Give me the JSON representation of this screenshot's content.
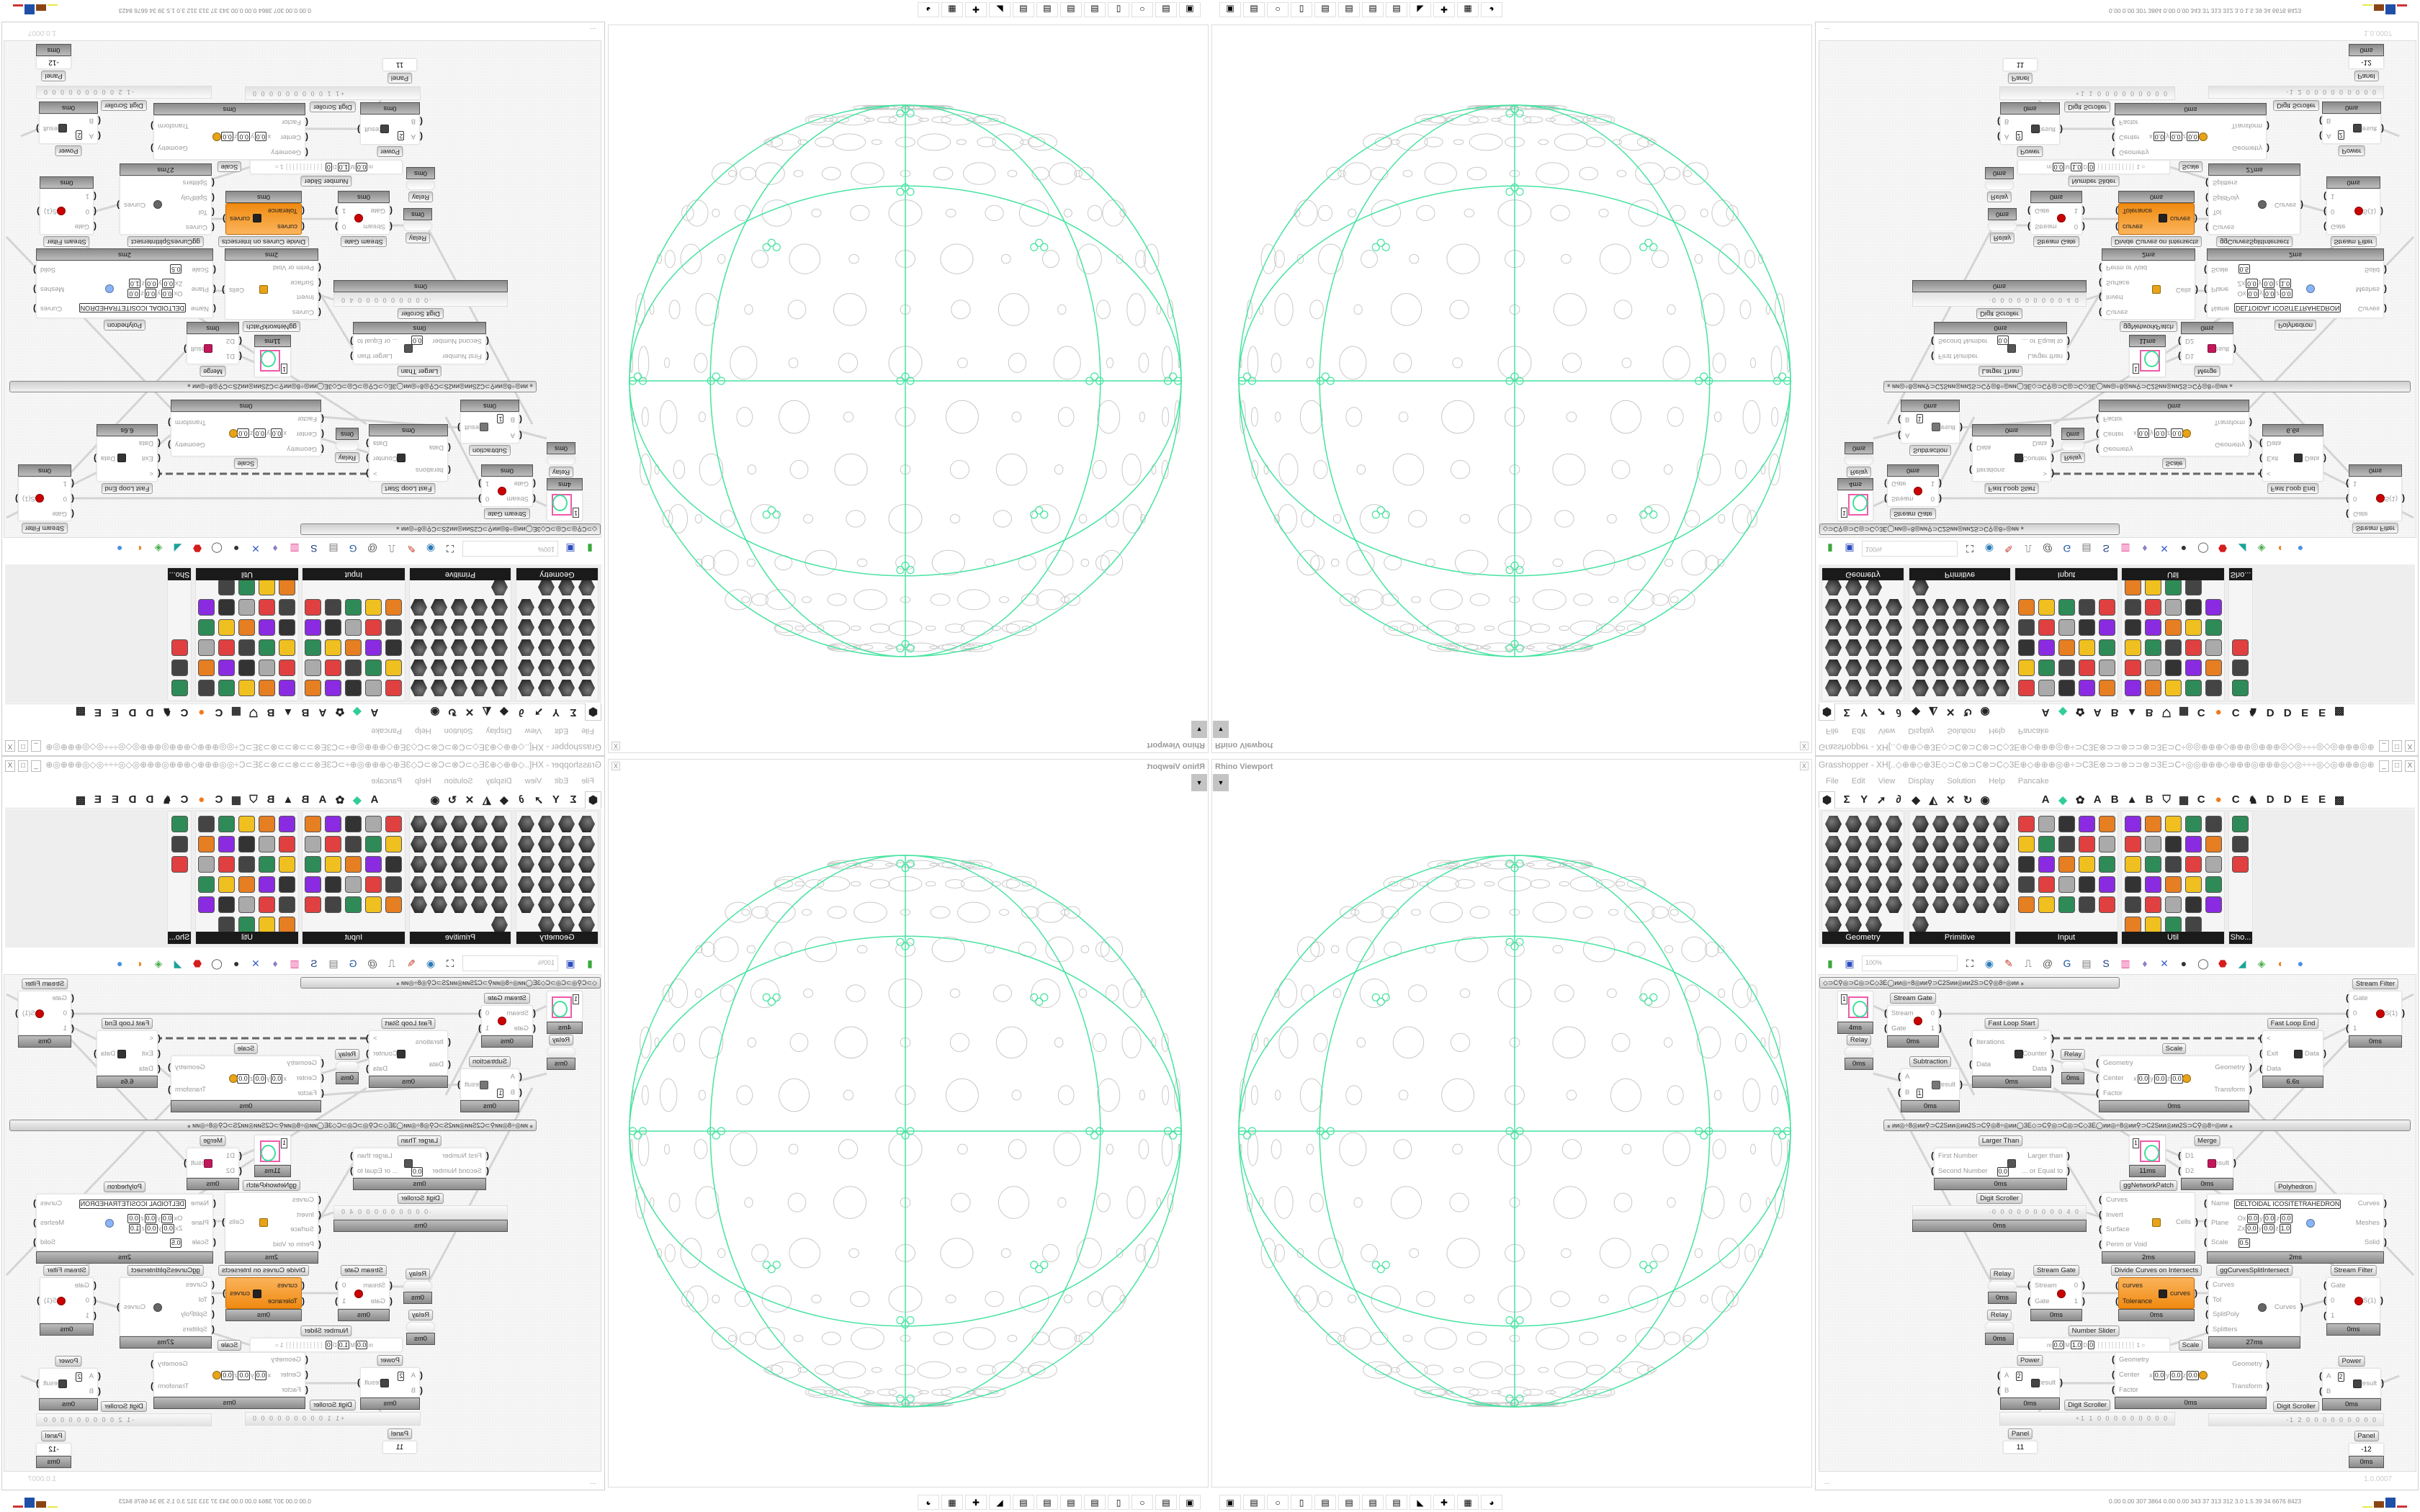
{
  "colors": {
    "accent_green": "#47e3a0",
    "component_orange": "#f7941d",
    "swatch_pink": "#ee5aa8"
  },
  "viewport": {
    "title": "Rhino Viewport",
    "close_label": "X",
    "dropdown_icon": "chevron-down-icon",
    "taskbar": [
      "battery-monitor-icon",
      "save-64-icon",
      "blank-app-icon",
      "folder-icon",
      "notepad-icon",
      "notepad-icon",
      "notepad-icon",
      "notepad-icon",
      "wolf-app-icon",
      "red-badge-app-icon",
      "calculator-icon",
      "firefox-icon"
    ]
  },
  "grasshopper": {
    "title": "Grasshopper - XH[..◇⊕⊕◇⊕3E◇⊃C⊗⊃C⊗⊃C◇3E⊕◇⊕⊕⊕◎⊕÷⊃C3E⊗⊃⊃⊗⊃⊃⊗⊃3E⊃C÷◎◎⊕⊕⊕◇⊕⊕⊕◎⊕⊕⊕◎◇◎÷÷÷◎◇◎⊕⊕⊕◎⊕⊕⊕◇⊕⊕⊕◎◎÷⊃C3E⊗⊃⊃⊗⊃...",
    "window_controls": [
      "_",
      "□",
      "X"
    ],
    "menu": [
      "File",
      "Edit",
      "View",
      "Display",
      "Solution",
      "Help",
      "Pancake"
    ],
    "tabs": [
      {
        "kind": "icon",
        "glyph": "⬢",
        "name": "params-tab-icon",
        "selected": true
      },
      {
        "kind": "icon",
        "glyph": "Σ",
        "name": "maths-tab-icon"
      },
      {
        "kind": "icon",
        "glyph": "Y",
        "name": "sets-tab-icon"
      },
      {
        "kind": "icon",
        "glyph": "➚",
        "name": "vector-tab-icon"
      },
      {
        "kind": "icon",
        "glyph": "∂",
        "name": "curve-tab-icon"
      },
      {
        "kind": "icon",
        "glyph": "◆",
        "name": "surface-tab-icon"
      },
      {
        "kind": "icon",
        "glyph": "◭",
        "name": "mesh-tab-icon"
      },
      {
        "kind": "icon",
        "glyph": "✕",
        "name": "intersect-tab-icon"
      },
      {
        "kind": "icon",
        "glyph": "↻",
        "name": "transform-tab-icon"
      },
      {
        "kind": "icon",
        "glyph": "◉",
        "name": "display-tab-icon"
      },
      {
        "kind": "text",
        "glyph": "A"
      },
      {
        "kind": "icon",
        "glyph": "◆",
        "name": "green-crystal-tab-icon"
      },
      {
        "kind": "icon",
        "glyph": "✿",
        "name": "puzzle-tab-icon"
      },
      {
        "kind": "text",
        "glyph": "A"
      },
      {
        "kind": "text",
        "glyph": "B"
      },
      {
        "kind": "icon",
        "glyph": "▲",
        "name": "mountains-tab-icon"
      },
      {
        "kind": "text",
        "glyph": "B"
      },
      {
        "kind": "icon",
        "glyph": "⛉",
        "name": "shield-tab-icon"
      },
      {
        "kind": "icon",
        "glyph": "▦",
        "name": "grid-tab-icon"
      },
      {
        "kind": "text",
        "glyph": "C"
      },
      {
        "kind": "icon",
        "glyph": "●",
        "name": "orange-circle-tab-icon"
      },
      {
        "kind": "text",
        "glyph": "C"
      },
      {
        "kind": "icon",
        "glyph": "♞",
        "name": "bird-tab-icon"
      },
      {
        "kind": "text",
        "glyph": "D"
      },
      {
        "kind": "text",
        "glyph": "D"
      },
      {
        "kind": "text",
        "glyph": "E"
      },
      {
        "kind": "text",
        "glyph": "E"
      },
      {
        "kind": "icon",
        "glyph": "▩",
        "name": "more-tabs-icon"
      }
    ],
    "panels": [
      {
        "label": "Geometry",
        "icons": [
          "vector-param-icon",
          "line-param-icon",
          "point-param-icon",
          "spiral-param-icon",
          "delete-param-icon",
          "plane-param-icon",
          "face-param-icon",
          "frame-param-icon",
          "arrow-param-icon",
          "diamond-param-icon",
          "text-tag-param-icon",
          "wave-param-icon",
          "circle-param-icon",
          "box-param-icon",
          "capsule-param-icon",
          "cluster-param-icon",
          "arc-param-icon",
          "cube-param-icon",
          "surface-param-icon",
          "gear-param-icon",
          "rings-param-icon",
          "mesh-sphere-param-icon",
          "magnet-param-icon"
        ]
      },
      {
        "label": "Primitive",
        "icons": [
          "boolean-icon",
          "path-icon",
          "matrix-icon",
          "curve-id-icon",
          "domain-icon",
          "field-icon",
          "vector-field-icon",
          "time-icon",
          "shade-icon",
          "color-icon",
          "pin-icon",
          "ucs-icon",
          "hexagon-icon",
          "material-icon",
          "integer-icon",
          "split-icon",
          "tree-icon",
          "transform-icon",
          "decimal-icon",
          "hash-icon",
          "c-text-icon",
          "file-path-icon",
          "a-text-icon",
          "id-icon",
          "sphere-icon",
          "data-icon"
        ]
      },
      {
        "label": "Input",
        "icons": [
          "import-icon",
          "black-box-icon",
          "prism-icon",
          "3dm-icon",
          "loop-icon",
          "graph-mapper-icon",
          "gradient-icon",
          "paint-icon",
          "xyz-icon",
          "toggle-icon",
          "control-knob-icon",
          "color-wheel-icon",
          "img-icon",
          "button-icon",
          "checker-icon",
          "curve-graph-icon",
          "pdb-icon",
          "stairs-icon",
          "calendar-icon",
          "gumball-icon",
          "shp-icon",
          "list-icon",
          "clock-icon",
          "color-bars-icon",
          "id-tag-icon"
        ]
      },
      {
        "label": "Util",
        "icons": [
          "cherry-icon",
          "magnet-icon",
          "arrow-right-icon",
          "cs-script-icon",
          "a-script-icon",
          "play-icon",
          "record-icon",
          "search-icon",
          "spiral-script-icon",
          "ball-icon",
          "axis-icon",
          "pencil-icon",
          "timer-icon",
          "seven-script-icon",
          "flask-icon",
          "tree-icon",
          "fuse-icon",
          "egg-icon",
          "key-script-icon",
          "function-icon",
          "circle-icon",
          "reset-icon",
          "premiere-icon",
          "decimal-script-icon",
          "palette-icon",
          "abc-icon",
          "next-arrow-icon",
          "gauge-script-icon",
          "cross-script-icon"
        ]
      },
      {
        "label": "Sho...",
        "icons": [
          "headset-icon",
          "vr-icon",
          "display-stand-icon"
        ]
      }
    ],
    "toolbar": {
      "zoom_value": "100%",
      "icons": [
        {
          "name": "new-document-icon",
          "glyph": "▮",
          "color": "#3aa83a"
        },
        {
          "name": "save-icon",
          "glyph": "▣",
          "color": "#2c4bbf"
        },
        {
          "name": "zoom-extents-icon",
          "glyph": "⛶",
          "color": "#111"
        },
        {
          "name": "preview-eye-icon",
          "glyph": "◉",
          "color": "#2a7ab8"
        },
        {
          "name": "sketch-icon",
          "glyph": "✎",
          "color": "#c0392b"
        },
        {
          "name": "solver-icon",
          "glyph": "⎍",
          "color": "#333"
        },
        {
          "name": "email-icon",
          "glyph": "@",
          "color": "#555"
        },
        {
          "name": "gha-icon",
          "glyph": "G",
          "color": "#1e56a0"
        },
        {
          "name": "canvas-image-icon",
          "glyph": "▤",
          "color": "#777"
        },
        {
          "name": "search-component-icon",
          "glyph": "S",
          "color": "#1d3b7a"
        },
        {
          "name": "package-icon",
          "glyph": "▥",
          "color": "#e84393"
        },
        {
          "name": "balloon-icon",
          "glyph": "♦",
          "color": "#8e7cc3"
        },
        {
          "name": "dna-icon",
          "glyph": "✕",
          "color": "#3a5fcd"
        },
        {
          "name": "bulb-icon",
          "glyph": "●",
          "color": "#333"
        },
        {
          "name": "ring-icon",
          "glyph": "◯",
          "color": "#555"
        },
        {
          "name": "red-gem-icon",
          "glyph": "⬣",
          "color": "#d51d1d"
        },
        {
          "name": "teal-shape-icon",
          "glyph": "◢",
          "color": "#1aa39a"
        },
        {
          "name": "green-spindle-icon",
          "glyph": "◈",
          "color": "#4caf50"
        },
        {
          "name": "split-sphere-icon",
          "glyph": "◐",
          "color": "#e67e22"
        },
        {
          "name": "blue-sphere-icon",
          "glyph": "●",
          "color": "#4a90e2"
        }
      ]
    },
    "groups": [
      "◇⊃C⚲◎⊃C◎⊃C◇3E◯ᴎᴎ◎÷8◎ᴎᴎ⚲⊃C2Sᴎᴎ◎ᴎᴎ2S⊃C⚲◎8÷◎ᴎᴎ     ⁎",
      "⁎        ᴎᴎ◎÷8◎ᴎᴎ⚲⊃C2Sᴎᴎ◎ᴎᴎ2S⊃C⚲◎8÷◎ᴎᴎ◯3E◇⊃C⚲◎⊃C◎⊃C◇3E◯ᴎᴎ◎÷8◎ᴎᴎ⚲⊃C2Sᴎᴎ◎ᴎᴎ2S⊃C⚲◎8÷◎ᴎᴎ        ⁎"
    ],
    "nodes": [
      {
        "type": "swatch",
        "value": "1",
        "footer": "4ms"
      },
      {
        "type": "relay",
        "label": "Relay",
        "footer": "0ms"
      },
      {
        "type": "component",
        "label": "Stream Gate",
        "inputs": [
          "Stream",
          "Gate"
        ],
        "outputs": [
          "0",
          "1"
        ],
        "icon": "stream-gate-icon",
        "footer": "0ms"
      },
      {
        "type": "component",
        "label": "Fast Loop Start",
        "inputs": [
          "Iterations",
          "Data"
        ],
        "outputs": [
          ">",
          "Counter",
          "Data"
        ],
        "icon": "loop-start-icon",
        "footer": "0ms"
      },
      {
        "type": "relay",
        "label": "Relay",
        "footer": "0ms"
      },
      {
        "type": "component",
        "label": "Scale",
        "inputs": [
          "Geometry",
          "Center",
          "Factor"
        ],
        "outputs": [
          "Geometry",
          "Transform"
        ],
        "fields": {
          "Center": [
            "x",
            "0.0",
            "y",
            "0.0",
            "z",
            "0.0"
          ]
        },
        "icon": "scale-icon",
        "footer": "0ms"
      },
      {
        "type": "component",
        "label": "Fast Loop End",
        "inputs": [
          "<",
          "Exit",
          "Data"
        ],
        "outputs": [
          "Data"
        ],
        "icon": "loop-end-icon",
        "footer": "6.6s"
      },
      {
        "type": "component",
        "label": "Stream Filter",
        "inputs": [
          "Gate",
          "0",
          "1"
        ],
        "outputs": [
          "S(1)"
        ],
        "icon": "stream-filter-icon",
        "footer": "0ms"
      },
      {
        "type": "component",
        "label": "Subtraction",
        "inputs": [
          "A",
          "B"
        ],
        "outputs": [
          "Result"
        ],
        "fields": {
          "B": [
            "1"
          ]
        },
        "icon": "minus-icon",
        "footer": "0ms"
      },
      {
        "type": "component",
        "label": "Larger Than",
        "inputs": [
          "First Number",
          "Second Number"
        ],
        "outputs": [
          "Larger than",
          "... or Equal to"
        ],
        "fields": {
          "Second Number": [
            "0.0"
          ]
        },
        "icon": "greater-than-icon",
        "footer": "0ms"
      },
      {
        "type": "swatch",
        "value": "1",
        "footer": "11ms"
      },
      {
        "type": "component",
        "label": "Merge",
        "inputs": [
          "D1",
          "D2"
        ],
        "outputs": [
          "Result"
        ],
        "icon": "merge-icon",
        "footer": "0ms"
      },
      {
        "type": "scroller",
        "label": "Digit Scroller",
        "value": "·0 0 0 0 0 0 0 0 0 4 0",
        "footer": "0ms"
      },
      {
        "type": "component",
        "label": "ggNetworkPatch",
        "inputs": [
          "Curves",
          "Invert",
          "Surface",
          "Perim or Void"
        ],
        "outputs": [
          "Cells"
        ],
        "icon": "network-patch-icon",
        "footer": "2ms"
      },
      {
        "type": "component",
        "label": "Polyhedron",
        "inputs": [
          "Name",
          "Plane",
          "Scale"
        ],
        "outputs": [
          "Curves",
          "Meshes",
          "Solid"
        ],
        "fields": {
          "Name": [
            "DELTOIDAL ICOSITETRAHEDRON"
          ],
          "Plane": [
            [
              "O",
              "x",
              "0.0",
              "y",
              "0.0",
              "z",
              "0.0"
            ],
            [
              "Z",
              "x",
              "0.0",
              "y",
              "0.0",
              "z",
              "1.0"
            ]
          ],
          "Scale": [
            "0.5"
          ]
        },
        "icon": "polyhedron-icon",
        "footer": "2ms"
      },
      {
        "type": "relay",
        "label": "Relay",
        "footer": "0ms"
      },
      {
        "type": "relay",
        "label": "Relay",
        "footer": "0ms"
      },
      {
        "type": "component",
        "label": "Stream Gate",
        "inputs": [
          "Stream",
          "Gate"
        ],
        "outputs": [
          "0",
          "1"
        ],
        "icon": "stream-gate-icon",
        "footer": "0ms"
      },
      {
        "type": "component",
        "label": "Divide Curves on Intersects",
        "inputs": [
          "curves",
          "Tolerance"
        ],
        "outputs": [
          "curves"
        ],
        "icon": "divide-curves-icon",
        "footer": "0ms",
        "highlight": true
      },
      {
        "type": "component",
        "label": "ggCurvesSplitIntersect",
        "inputs": [
          "Curves",
          "Tol",
          "SplitPoly",
          "Splitters"
        ],
        "outputs": [
          "Curves"
        ],
        "icon": "split-intersect-icon",
        "footer": "27ms"
      },
      {
        "type": "component",
        "label": "Stream Filter",
        "inputs": [
          "Gate",
          "0",
          "1"
        ],
        "outputs": [
          "S(1)"
        ],
        "icon": "stream-filter-icon",
        "footer": "0ms"
      },
      {
        "type": "slider",
        "label": "Number Slider",
        "min": "0.0",
        "max": "1.0",
        "decimals": "0",
        "value": "1"
      },
      {
        "type": "component",
        "label": "Power",
        "inputs": [
          "A",
          "B"
        ],
        "outputs": [
          "Result"
        ],
        "fields": {
          "A": [
            "2"
          ]
        },
        "icon": "power-icon",
        "footer": "0ms"
      },
      {
        "type": "component",
        "label": "Scale",
        "inputs": [
          "Geometry",
          "Center",
          "Factor"
        ],
        "outputs": [
          "Geometry",
          "Transform"
        ],
        "fields": {
          "Center": [
            "x",
            "0.0",
            "y",
            "0.0",
            "z",
            "0.0"
          ]
        },
        "icon": "scale-icon",
        "footer": "0ms"
      },
      {
        "type": "component",
        "label": "Power",
        "inputs": [
          "A",
          "B"
        ],
        "outputs": [
          "Result"
        ],
        "fields": {
          "A": [
            "2"
          ]
        },
        "icon": "power-icon",
        "footer": "0ms"
      },
      {
        "type": "scroller",
        "label": "Digit Scroller",
        "value": "+1 1 0 0 0 0 0 0 0 0 0"
      },
      {
        "type": "scroller",
        "label": "Digit Scroller",
        "value": "-1 2 0 0 0 0 0 0 0 0 0"
      },
      {
        "type": "panel",
        "label": "Panel",
        "value": "11"
      },
      {
        "type": "panel",
        "label": "Panel",
        "value": "-12",
        "footer": "0ms"
      }
    ],
    "status": {
      "left": "...",
      "version": "1.0.0007"
    },
    "perf": "0.00 0.00 307 3864 0.00 0.00 343  37  313  312  3.0  1.5  39  34  6676 8423"
  }
}
